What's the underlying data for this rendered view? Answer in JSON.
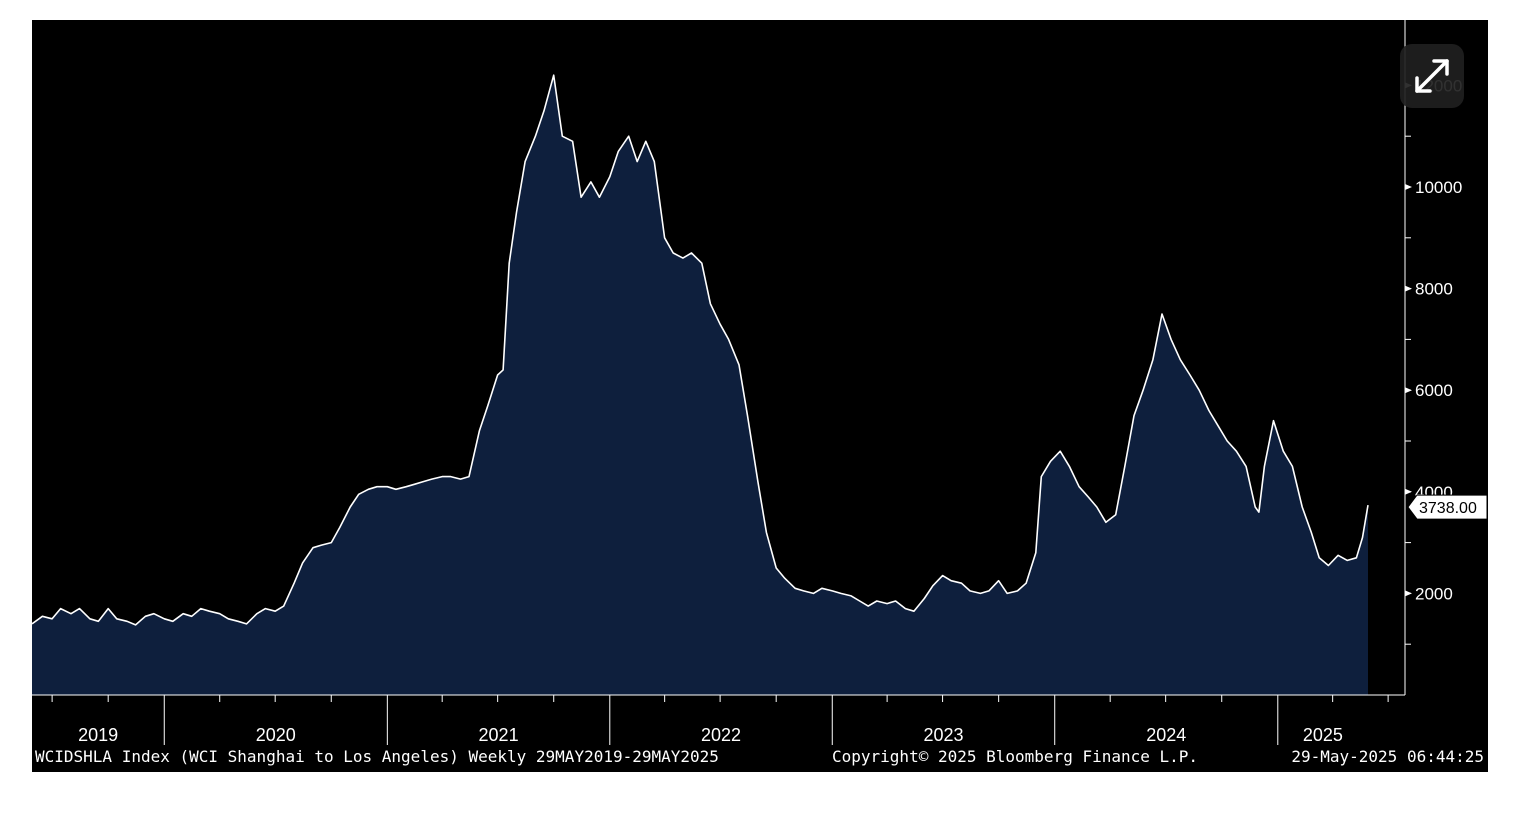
{
  "chart_data": {
    "type": "area",
    "title": "",
    "xlabel": "",
    "ylabel": "",
    "x_tick_labels": [
      "2019",
      "2020",
      "2021",
      "2022",
      "2023",
      "2024",
      "2025"
    ],
    "y_tick_labels": [
      "2000",
      "4000",
      "6000",
      "8000",
      "10000",
      "12000"
    ],
    "xlim": [
      "2019-05-29",
      "2025-05-29"
    ],
    "ylim": [
      0,
      12500
    ],
    "grid": false,
    "last_value_label": "3738.00",
    "series": [
      {
        "points": [
          [
            "2019-05-29",
            1400
          ],
          [
            "2019-06-15",
            1550
          ],
          [
            "2019-07-01",
            1500
          ],
          [
            "2019-07-15",
            1700
          ],
          [
            "2019-08-01",
            1600
          ],
          [
            "2019-08-15",
            1700
          ],
          [
            "2019-09-01",
            1500
          ],
          [
            "2019-09-15",
            1450
          ],
          [
            "2019-10-01",
            1700
          ],
          [
            "2019-10-15",
            1500
          ],
          [
            "2019-11-01",
            1450
          ],
          [
            "2019-11-15",
            1380
          ],
          [
            "2019-12-01",
            1550
          ],
          [
            "2019-12-15",
            1600
          ],
          [
            "2020-01-01",
            1500
          ],
          [
            "2020-01-15",
            1450
          ],
          [
            "2020-02-01",
            1600
          ],
          [
            "2020-02-15",
            1550
          ],
          [
            "2020-03-01",
            1700
          ],
          [
            "2020-03-15",
            1650
          ],
          [
            "2020-04-01",
            1600
          ],
          [
            "2020-04-15",
            1500
          ],
          [
            "2020-05-01",
            1450
          ],
          [
            "2020-05-15",
            1400
          ],
          [
            "2020-06-01",
            1600
          ],
          [
            "2020-06-15",
            1700
          ],
          [
            "2020-07-01",
            1650
          ],
          [
            "2020-07-15",
            1750
          ],
          [
            "2020-08-01",
            2200
          ],
          [
            "2020-08-15",
            2600
          ],
          [
            "2020-09-01",
            2900
          ],
          [
            "2020-09-15",
            2950
          ],
          [
            "2020-10-01",
            3000
          ],
          [
            "2020-10-15",
            3300
          ],
          [
            "2020-11-01",
            3700
          ],
          [
            "2020-11-15",
            3950
          ],
          [
            "2020-12-01",
            4050
          ],
          [
            "2020-12-15",
            4100
          ],
          [
            "2021-01-01",
            4100
          ],
          [
            "2021-01-15",
            4050
          ],
          [
            "2021-02-01",
            4100
          ],
          [
            "2021-02-15",
            4150
          ],
          [
            "2021-03-01",
            4200
          ],
          [
            "2021-03-15",
            4250
          ],
          [
            "2021-04-01",
            4300
          ],
          [
            "2021-04-15",
            4300
          ],
          [
            "2021-05-01",
            4250
          ],
          [
            "2021-05-15",
            4300
          ],
          [
            "2021-06-01",
            5200
          ],
          [
            "2021-06-15",
            5700
          ],
          [
            "2021-07-01",
            6300
          ],
          [
            "2021-07-10",
            6400
          ],
          [
            "2021-07-20",
            8500
          ],
          [
            "2021-08-01",
            9500
          ],
          [
            "2021-08-15",
            10500
          ],
          [
            "2021-09-01",
            11000
          ],
          [
            "2021-09-15",
            11500
          ],
          [
            "2021-10-01",
            12200
          ],
          [
            "2021-10-15",
            11000
          ],
          [
            "2021-11-01",
            10900
          ],
          [
            "2021-11-15",
            9800
          ],
          [
            "2021-12-01",
            10100
          ],
          [
            "2021-12-15",
            9800
          ],
          [
            "2022-01-01",
            10200
          ],
          [
            "2022-01-15",
            10700
          ],
          [
            "2022-02-01",
            11000
          ],
          [
            "2022-02-15",
            10500
          ],
          [
            "2022-03-01",
            10900
          ],
          [
            "2022-03-15",
            10500
          ],
          [
            "2022-04-01",
            9000
          ],
          [
            "2022-04-15",
            8700
          ],
          [
            "2022-05-01",
            8600
          ],
          [
            "2022-05-15",
            8700
          ],
          [
            "2022-06-01",
            8500
          ],
          [
            "2022-06-15",
            7700
          ],
          [
            "2022-07-01",
            7300
          ],
          [
            "2022-07-15",
            7000
          ],
          [
            "2022-08-01",
            6500
          ],
          [
            "2022-08-15",
            5500
          ],
          [
            "2022-09-01",
            4200
          ],
          [
            "2022-09-15",
            3200
          ],
          [
            "2022-10-01",
            2500
          ],
          [
            "2022-10-15",
            2300
          ],
          [
            "2022-11-01",
            2100
          ],
          [
            "2022-11-15",
            2050
          ],
          [
            "2022-12-01",
            2000
          ],
          [
            "2022-12-15",
            2100
          ],
          [
            "2023-01-01",
            2050
          ],
          [
            "2023-01-15",
            2000
          ],
          [
            "2023-02-01",
            1950
          ],
          [
            "2023-02-15",
            1850
          ],
          [
            "2023-03-01",
            1750
          ],
          [
            "2023-03-15",
            1850
          ],
          [
            "2023-04-01",
            1800
          ],
          [
            "2023-04-15",
            1850
          ],
          [
            "2023-05-01",
            1700
          ],
          [
            "2023-05-15",
            1650
          ],
          [
            "2023-06-01",
            1900
          ],
          [
            "2023-06-15",
            2150
          ],
          [
            "2023-07-01",
            2350
          ],
          [
            "2023-07-15",
            2250
          ],
          [
            "2023-08-01",
            2200
          ],
          [
            "2023-08-15",
            2050
          ],
          [
            "2023-09-01",
            2000
          ],
          [
            "2023-09-15",
            2050
          ],
          [
            "2023-10-01",
            2250
          ],
          [
            "2023-10-15",
            2000
          ],
          [
            "2023-11-01",
            2050
          ],
          [
            "2023-11-15",
            2200
          ],
          [
            "2023-12-01",
            2800
          ],
          [
            "2023-12-10",
            4300
          ],
          [
            "2023-12-25",
            4600
          ],
          [
            "2024-01-10",
            4800
          ],
          [
            "2024-01-25",
            4500
          ],
          [
            "2024-02-10",
            4100
          ],
          [
            "2024-02-25",
            3900
          ],
          [
            "2024-03-10",
            3700
          ],
          [
            "2024-03-25",
            3400
          ],
          [
            "2024-04-10",
            3550
          ],
          [
            "2024-04-25",
            4500
          ],
          [
            "2024-05-10",
            5500
          ],
          [
            "2024-05-25",
            6000
          ],
          [
            "2024-06-10",
            6600
          ],
          [
            "2024-06-25",
            7500
          ],
          [
            "2024-07-10",
            7000
          ],
          [
            "2024-07-25",
            6600
          ],
          [
            "2024-08-10",
            6300
          ],
          [
            "2024-08-25",
            6000
          ],
          [
            "2024-09-10",
            5600
          ],
          [
            "2024-09-25",
            5300
          ],
          [
            "2024-10-10",
            5000
          ],
          [
            "2024-10-25",
            4800
          ],
          [
            "2024-11-10",
            4500
          ],
          [
            "2024-11-25",
            3700
          ],
          [
            "2024-12-01",
            3600
          ],
          [
            "2024-12-10",
            4500
          ],
          [
            "2024-12-25",
            5400
          ],
          [
            "2025-01-10",
            4800
          ],
          [
            "2025-01-25",
            4500
          ],
          [
            "2025-02-10",
            3700
          ],
          [
            "2025-02-25",
            3200
          ],
          [
            "2025-03-10",
            2700
          ],
          [
            "2025-03-25",
            2550
          ],
          [
            "2025-04-10",
            2750
          ],
          [
            "2025-04-25",
            2650
          ],
          [
            "2025-05-10",
            2700
          ],
          [
            "2025-05-20",
            3100
          ],
          [
            "2025-05-29",
            3738
          ]
        ]
      }
    ],
    "colors": {
      "background": "#000000",
      "fill": "#0e1f3d",
      "line": "#ffffff",
      "axis": "#ffffff",
      "text": "#ffffff"
    }
  },
  "footer": {
    "left": "WCIDSHLA Index (WCI Shanghai to Los Angeles)  Weekly 29MAY2019-29MAY2025",
    "center": "Copyright© 2025 Bloomberg Finance L.P.",
    "right": "29-May-2025 06:44:25"
  },
  "ui": {
    "expand_icon": "expand-arrows-icon"
  }
}
